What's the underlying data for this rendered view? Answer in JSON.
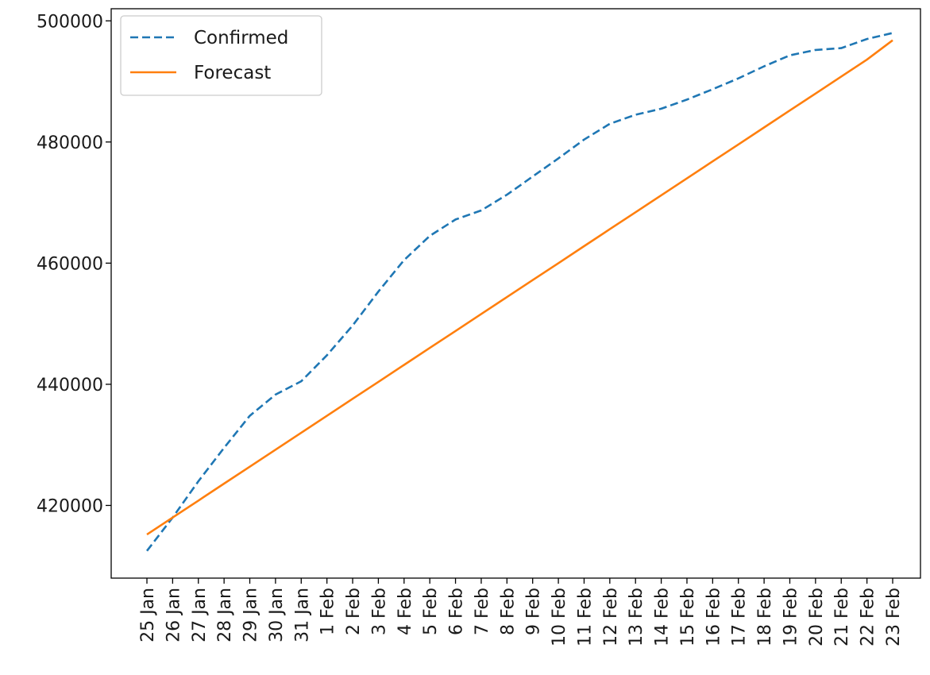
{
  "chart_data": {
    "type": "line",
    "x": [
      "25 Jan",
      "26 Jan",
      "27 Jan",
      "28 Jan",
      "29 Jan",
      "30 Jan",
      "31 Jan",
      "1 Feb",
      "2 Feb",
      "3 Feb",
      "4 Feb",
      "5 Feb",
      "6 Feb",
      "7 Feb",
      "8 Feb",
      "9 Feb",
      "10 Feb",
      "11 Feb",
      "12 Feb",
      "13 Feb",
      "14 Feb",
      "15 Feb",
      "16 Feb",
      "17 Feb",
      "18 Feb",
      "19 Feb",
      "20 Feb",
      "21 Feb",
      "22 Feb",
      "23 Feb"
    ],
    "series": [
      {
        "name": "Confirmed",
        "style": "dashed",
        "color": "#1f77b4",
        "values": [
          412500,
          418000,
          424000,
          429500,
          434800,
          438300,
          440500,
          444800,
          449700,
          455300,
          460500,
          464500,
          467200,
          468700,
          471300,
          474300,
          477300,
          480400,
          483000,
          484500,
          485500,
          487000,
          488700,
          490500,
          492500,
          494300,
          495200,
          495500,
          497000,
          498000
        ]
      },
      {
        "name": "Forecast",
        "style": "solid",
        "color": "#ff7f0e",
        "values": [
          415200,
          418000,
          420800,
          423600,
          426400,
          429200,
          432000,
          434800,
          437600,
          440400,
          443200,
          446000,
          448800,
          451600,
          454400,
          457200,
          460000,
          462800,
          465600,
          468400,
          471200,
          474000,
          476800,
          479600,
          482400,
          485200,
          488000,
          490800,
          493600,
          496800
        ]
      }
    ],
    "yticks": [
      420000,
      440000,
      460000,
      480000,
      500000
    ],
    "ylim": [
      408000,
      502000
    ],
    "title": "",
    "xlabel": "",
    "ylabel": "",
    "legend": "top-left",
    "grid": false
  }
}
